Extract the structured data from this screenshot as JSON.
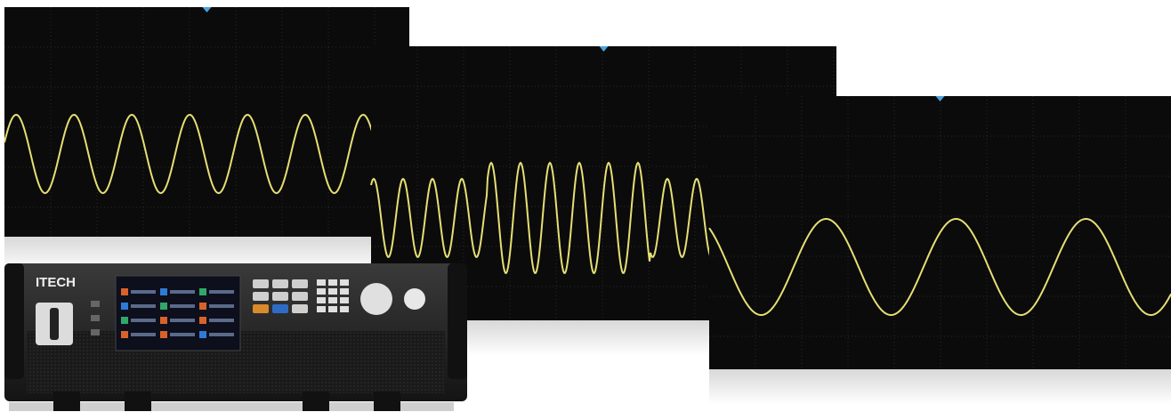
{
  "brand": "ITECH"
}
